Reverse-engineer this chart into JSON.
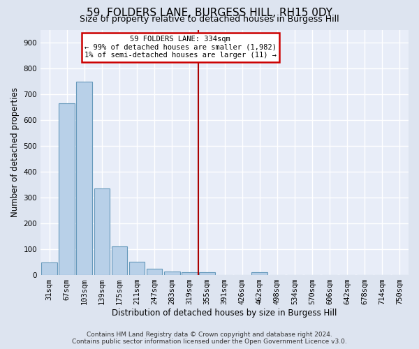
{
  "title": "59, FOLDERS LANE, BURGESS HILL, RH15 0DY",
  "subtitle": "Size of property relative to detached houses in Burgess Hill",
  "xlabel": "Distribution of detached houses by size in Burgess Hill",
  "ylabel": "Number of detached properties",
  "footer_line1": "Contains HM Land Registry data © Crown copyright and database right 2024.",
  "footer_line2": "Contains public sector information licensed under the Open Government Licence v3.0.",
  "categories": [
    "31sqm",
    "67sqm",
    "103sqm",
    "139sqm",
    "175sqm",
    "211sqm",
    "247sqm",
    "283sqm",
    "319sqm",
    "355sqm",
    "391sqm",
    "426sqm",
    "462sqm",
    "498sqm",
    "534sqm",
    "570sqm",
    "606sqm",
    "642sqm",
    "678sqm",
    "714sqm",
    "750sqm"
  ],
  "values": [
    50,
    665,
    750,
    335,
    110,
    52,
    25,
    15,
    10,
    10,
    0,
    0,
    10,
    0,
    0,
    0,
    0,
    0,
    0,
    0,
    0
  ],
  "bar_color": "#b8d0e8",
  "bar_edge_color": "#6699bb",
  "vline_index": 9,
  "annotation_title": "59 FOLDERS LANE: 334sqm",
  "annotation_line2": "← 99% of detached houses are smaller (1,982)",
  "annotation_line3": "1% of semi-detached houses are larger (11) →",
  "annotation_box_color": "#ffffff",
  "annotation_border_color": "#cc0000",
  "vline_color": "#aa0000",
  "ylim": [
    0,
    950
  ],
  "yticks": [
    0,
    100,
    200,
    300,
    400,
    500,
    600,
    700,
    800,
    900
  ],
  "bg_color": "#dde4f0",
  "plot_bg_color": "#e8edf8",
  "grid_color": "#ffffff",
  "title_fontsize": 11,
  "subtitle_fontsize": 9,
  "tick_fontsize": 7.5,
  "footer_fontsize": 6.5
}
